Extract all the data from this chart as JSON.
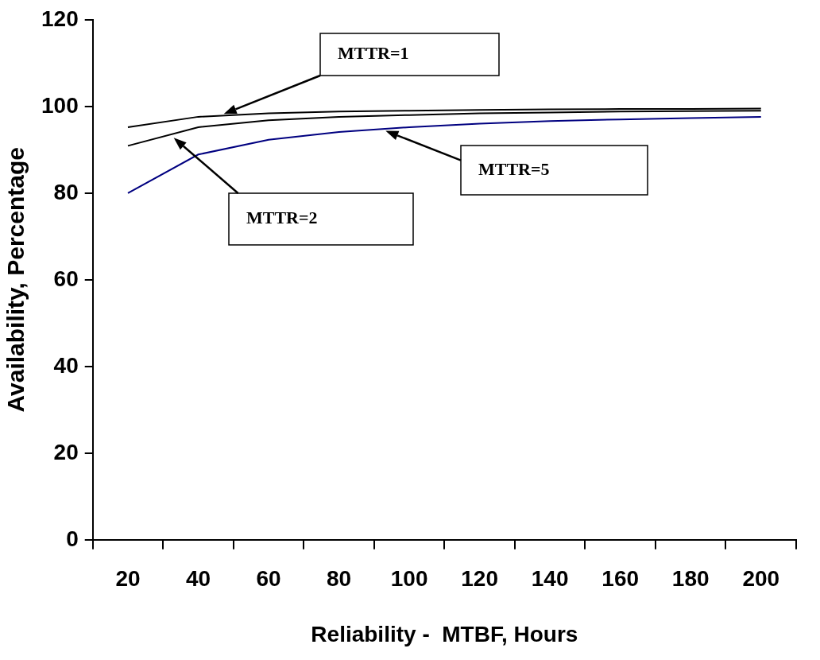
{
  "chart_data": {
    "type": "line",
    "xlabel": "Reliability -  MTBF, Hours",
    "ylabel": "Availability, Percentage",
    "categories": [
      "20",
      "40",
      "60",
      "80",
      "100",
      "120",
      "140",
      "160",
      "180",
      "200"
    ],
    "ylim": [
      0,
      120
    ],
    "yticks": [
      0,
      20,
      40,
      60,
      80,
      100,
      120
    ],
    "grid": false,
    "legend": false,
    "marker": "none",
    "line_style": "solid",
    "series": [
      {
        "name": "MTTR=1",
        "color": "#000000",
        "values": [
          95.2,
          97.6,
          98.4,
          98.8,
          99.0,
          99.2,
          99.3,
          99.4,
          99.4,
          99.5
        ]
      },
      {
        "name": "MTTR=2",
        "color": "#000000",
        "values": [
          90.9,
          95.2,
          96.8,
          97.6,
          98.0,
          98.4,
          98.6,
          98.8,
          98.9,
          99.0
        ]
      },
      {
        "name": "MTTR=5",
        "color": "#000080",
        "values": [
          80.0,
          88.9,
          92.3,
          94.1,
          95.2,
          96.0,
          96.6,
          97.0,
          97.3,
          97.6
        ]
      }
    ]
  }
}
